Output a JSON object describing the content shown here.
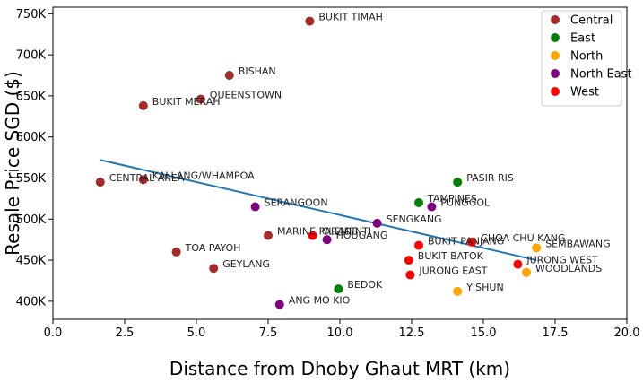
{
  "chart_data": {
    "type": "scatter",
    "xlabel": "Distance from Dhoby Ghaut MRT (km)",
    "ylabel": "Resale Price SGD ($)",
    "xlim": [
      0,
      20
    ],
    "ylim": [
      378000,
      758000
    ],
    "x_ticks": [
      0,
      2.5,
      5,
      7.5,
      10,
      12.5,
      15,
      17.5,
      20
    ],
    "x_tick_labels": [
      "0.0",
      "2.5",
      "5.0",
      "7.5",
      "10.0",
      "12.5",
      "15.0",
      "17.5",
      "20.0"
    ],
    "y_ticks": [
      400000,
      450000,
      500000,
      550000,
      600000,
      650000,
      700000,
      750000
    ],
    "y_tick_labels": [
      "400K",
      "450K",
      "500K",
      "550K",
      "600K",
      "650K",
      "700K",
      "750K"
    ],
    "grid": false,
    "legend_position": "top-right",
    "series": [
      {
        "name": "Central",
        "color": "#a52a2a",
        "points": [
          {
            "label": "BUKIT TIMAH",
            "x": 8.95,
            "y": 741000
          },
          {
            "label": "BISHAN",
            "x": 6.15,
            "y": 675000
          },
          {
            "label": "BUKIT MERAH",
            "x": 3.15,
            "y": 638000
          },
          {
            "label": "QUEENSTOWN",
            "x": 5.15,
            "y": 646000
          },
          {
            "label": "CENTRAL AREA",
            "x": 1.65,
            "y": 545000
          },
          {
            "label": "KALLANG/WHAMPOA",
            "x": 3.15,
            "y": 548000
          },
          {
            "label": "MARINE PARADE",
            "x": 7.5,
            "y": 480000
          },
          {
            "label": "TOA PAYOH",
            "x": 4.3,
            "y": 460000
          },
          {
            "label": "GEYLANG",
            "x": 5.6,
            "y": 440000
          }
        ]
      },
      {
        "name": "East",
        "color": "#008000",
        "points": [
          {
            "label": "PASIR RIS",
            "x": 14.1,
            "y": 545000
          },
          {
            "label": "TAMPINES",
            "x": 12.75,
            "y": 520000
          },
          {
            "label": "BEDOK",
            "x": 9.95,
            "y": 415000
          }
        ]
      },
      {
        "name": "North",
        "color": "#ffa500",
        "points": [
          {
            "label": "SEMBAWANG",
            "x": 16.85,
            "y": 465000
          },
          {
            "label": "WOODLANDS",
            "x": 16.5,
            "y": 435000
          },
          {
            "label": "YISHUN",
            "x": 14.1,
            "y": 412000
          }
        ]
      },
      {
        "name": "North East",
        "color": "#800080",
        "points": [
          {
            "label": "SERANGOON",
            "x": 7.05,
            "y": 515000
          },
          {
            "label": "PUNGGOL",
            "x": 13.2,
            "y": 515000
          },
          {
            "label": "SENGKANG",
            "x": 11.3,
            "y": 495000
          },
          {
            "label": "HOUGANG",
            "x": 9.55,
            "y": 475000
          },
          {
            "label": "ANG MO KIO",
            "x": 7.9,
            "y": 396000
          }
        ]
      },
      {
        "name": "West",
        "color": "#ff0000",
        "points": [
          {
            "label": "CLEMENTI",
            "x": 9.05,
            "y": 480000
          },
          {
            "label": "BUKIT PANJANG",
            "x": 12.75,
            "y": 468000
          },
          {
            "label": "CHOA CHU KANG",
            "x": 14.6,
            "y": 472000
          },
          {
            "label": "BUKIT BATOK",
            "x": 12.4,
            "y": 450000
          },
          {
            "label": "JURONG WEST",
            "x": 16.2,
            "y": 445000
          },
          {
            "label": "JURONG EAST",
            "x": 12.45,
            "y": 432000
          }
        ]
      }
    ],
    "trend_line": {
      "color": "#1f77b4",
      "x": [
        1.65,
        16.85
      ],
      "y": [
        572000,
        450000
      ]
    }
  }
}
